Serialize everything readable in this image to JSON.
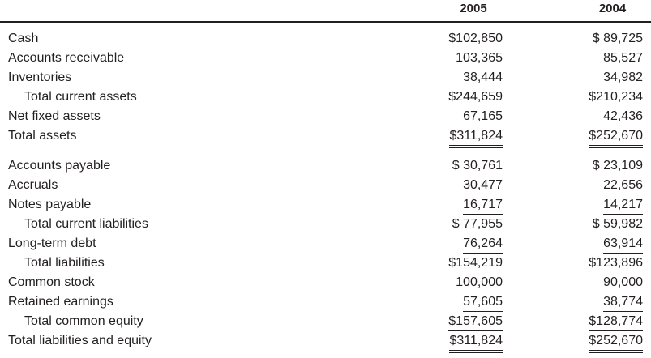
{
  "header": {
    "col_2005": "2005",
    "col_2004": "2004"
  },
  "rows": [
    {
      "label": "Cash",
      "indent": 0,
      "v2005": "$102,850",
      "v2004": "$ 89,725",
      "rule": "none"
    },
    {
      "label": "Accounts receivable",
      "indent": 0,
      "v2005": "103,365",
      "v2004": "85,527",
      "rule": "none"
    },
    {
      "label": "Inventories",
      "indent": 0,
      "v2005": "38,444",
      "v2004": "34,982",
      "rule": "single"
    },
    {
      "label": "Total current assets",
      "indent": 1,
      "v2005": "$244,659",
      "v2004": "$210,234",
      "rule": "none"
    },
    {
      "label": "Net fixed assets",
      "indent": 0,
      "v2005": "67,165",
      "v2004": "42,436",
      "rule": "single"
    },
    {
      "label": "Total assets",
      "indent": 0,
      "v2005": "$311,824",
      "v2004": "$252,670",
      "rule": "double"
    },
    {
      "label": "Accounts payable",
      "indent": 0,
      "v2005": "$ 30,761",
      "v2004": "$ 23,109",
      "rule": "none"
    },
    {
      "label": "Accruals",
      "indent": 0,
      "v2005": "30,477",
      "v2004": "22,656",
      "rule": "none"
    },
    {
      "label": "Notes payable",
      "indent": 0,
      "v2005": "16,717",
      "v2004": "14,217",
      "rule": "single"
    },
    {
      "label": "Total current liabilities",
      "indent": 1,
      "v2005": "$ 77,955",
      "v2004": "$ 59,982",
      "rule": "none"
    },
    {
      "label": "Long-term debt",
      "indent": 0,
      "v2005": "76,264",
      "v2004": "63,914",
      "rule": "single"
    },
    {
      "label": "Total liabilities",
      "indent": 1,
      "v2005": "$154,219",
      "v2004": "$123,896",
      "rule": "none"
    },
    {
      "label": "Common stock",
      "indent": 0,
      "v2005": "100,000",
      "v2004": "90,000",
      "rule": "none"
    },
    {
      "label": "Retained earnings",
      "indent": 0,
      "v2005": "57,605",
      "v2004": "38,774",
      "rule": "single"
    },
    {
      "label": "Total common equity",
      "indent": 1,
      "v2005": "$157,605",
      "v2004": "$128,774",
      "rule": "single"
    },
    {
      "label": "Total liabilities and equity",
      "indent": 0,
      "v2005": "$311,824",
      "v2004": "$252,670",
      "rule": "double"
    }
  ]
}
